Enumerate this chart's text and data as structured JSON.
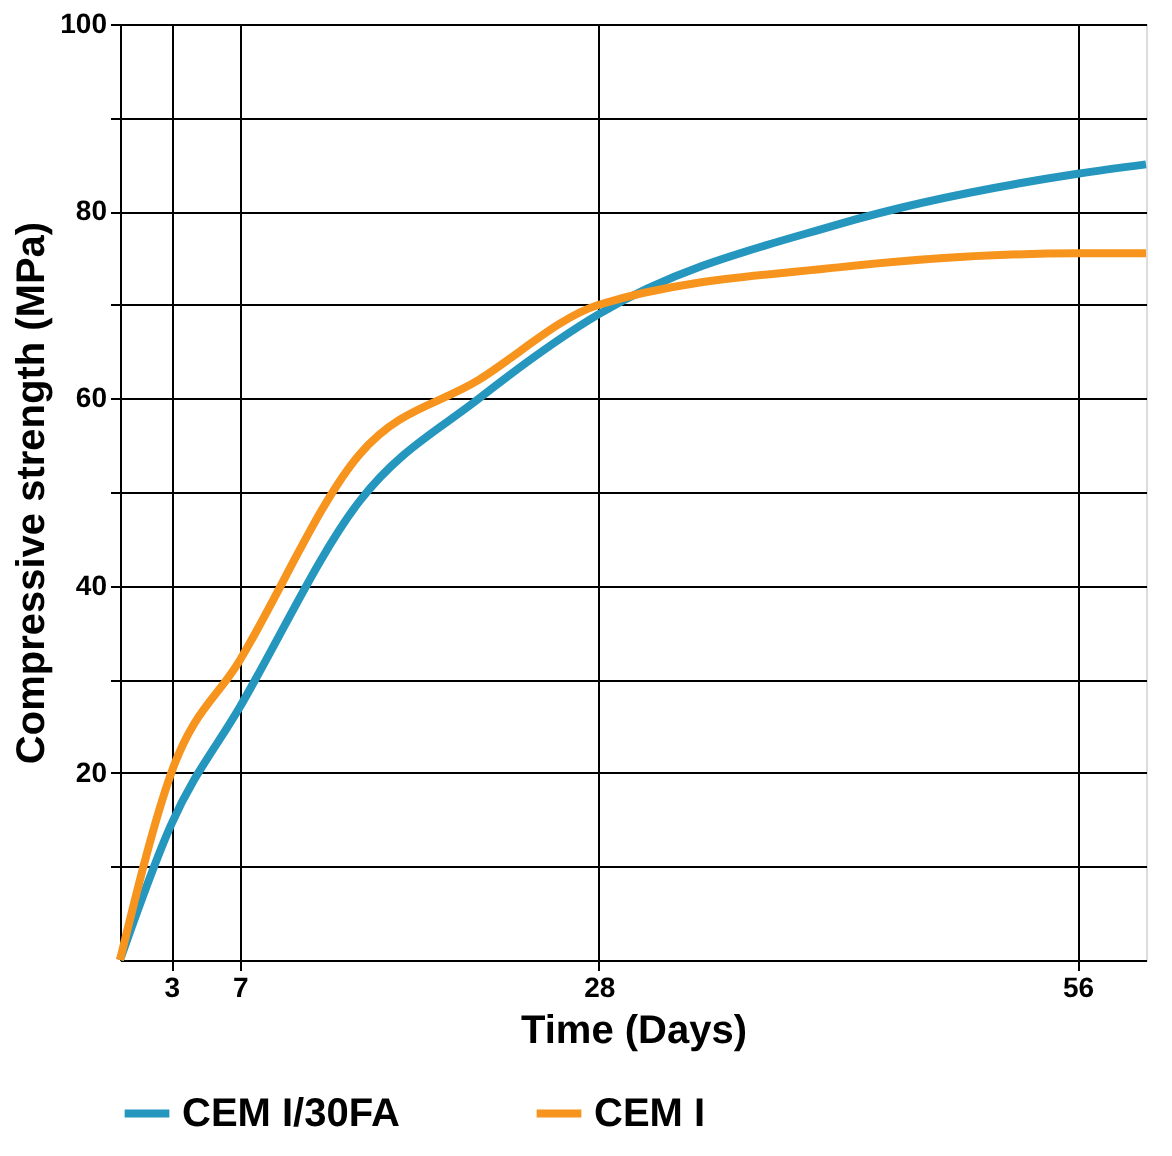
{
  "chart_data": {
    "type": "line",
    "xlabel": "Time (Days)",
    "ylabel": "Compressive strength (MPa)",
    "xlim": [
      0,
      60
    ],
    "xticks": [
      3,
      7,
      28,
      56
    ],
    "ylim": [
      0,
      100
    ],
    "yticks": [
      {
        "value": 10,
        "label": null
      },
      20,
      {
        "value": 30,
        "label": null
      },
      40,
      {
        "value": 50,
        "label": null
      },
      60,
      {
        "value": 70,
        "label": null
      },
      80,
      {
        "value": 90,
        "label": null
      },
      100
    ],
    "grid": true,
    "legend": "bottom",
    "marker": "none",
    "line_style": "solid",
    "series": [
      {
        "name": "CEM I/30FA",
        "color": "#2596be",
        "x": [
          0,
          3,
          7,
          14,
          21,
          28,
          42,
          56,
          60
        ],
        "values": [
          0,
          14.5,
          27,
          49,
          60,
          69,
          78.6,
          84,
          85
        ]
      },
      {
        "name": "CEM I",
        "color": "#f7941d",
        "x": [
          0,
          3,
          7,
          14,
          21,
          28,
          42,
          56,
          60
        ],
        "values": [
          0,
          20,
          32,
          54,
          62,
          70,
          74,
          75.5,
          75.5
        ]
      }
    ]
  }
}
